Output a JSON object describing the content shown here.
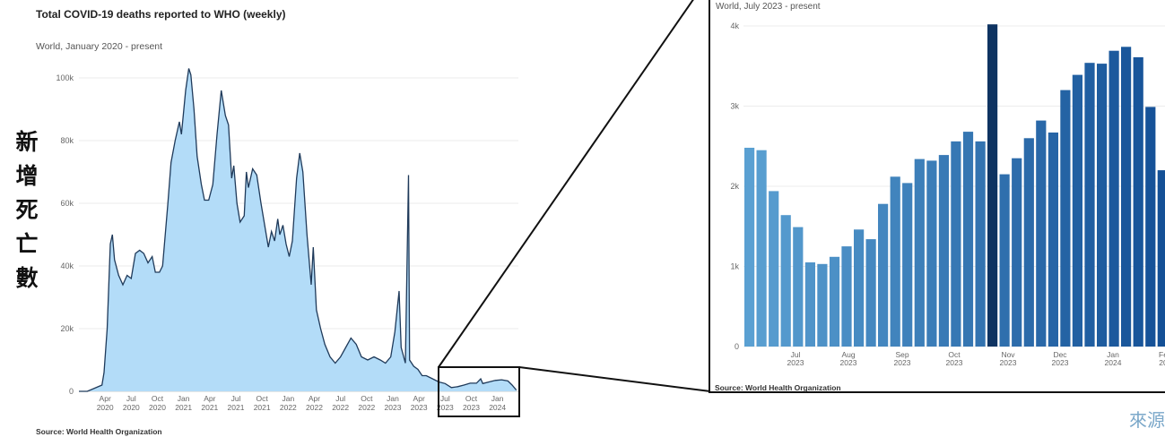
{
  "main_chart": {
    "title": "Total COVID-19 deaths reported to WHO (weekly)",
    "subtitle": "World, January 2020 - present",
    "source": "Source: World Health Organization"
  },
  "inset_chart": {
    "subtitle": "World, July 2023 - present",
    "source": "Source: World Health Organization"
  },
  "side_label": {
    "chars": [
      "新",
      "增",
      "死",
      "亡",
      "數"
    ]
  },
  "corner_text": "來源",
  "colors": {
    "area_fill": "#b3dcf8",
    "area_stroke": "#1f3a5a",
    "highlight_bar": "#0e3361",
    "frame": "#111111"
  },
  "chart_data": [
    {
      "type": "area",
      "ylim": [
        0,
        104000
      ],
      "yticks": [
        "0",
        "20k",
        "40k",
        "60k",
        "80k",
        "100k"
      ],
      "xticks": [
        {
          "m": "Apr",
          "y": "2020"
        },
        {
          "m": "Jul",
          "y": "2020"
        },
        {
          "m": "Oct",
          "y": "2020"
        },
        {
          "m": "Jan",
          "y": "2021"
        },
        {
          "m": "Apr",
          "y": "2021"
        },
        {
          "m": "Jul",
          "y": "2021"
        },
        {
          "m": "Oct",
          "y": "2021"
        },
        {
          "m": "Jan",
          "y": "2022"
        },
        {
          "m": "Apr",
          "y": "2022"
        },
        {
          "m": "Jul",
          "y": "2022"
        },
        {
          "m": "Oct",
          "y": "2022"
        },
        {
          "m": "Jan",
          "y": "2023"
        },
        {
          "m": "Apr",
          "y": "2023"
        },
        {
          "m": "Jul",
          "y": "2023"
        },
        {
          "m": "Oct",
          "y": "2023"
        },
        {
          "m": "Jan",
          "y": "2024"
        }
      ],
      "series": [
        {
          "values": [
            [
              2020.0,
              0
            ],
            [
              2020.08,
              0
            ],
            [
              2020.15,
              1000
            ],
            [
              2020.22,
              2000
            ],
            [
              2020.24,
              6000
            ],
            [
              2020.27,
              20000
            ],
            [
              2020.3,
              47000
            ],
            [
              2020.32,
              50000
            ],
            [
              2020.34,
              42000
            ],
            [
              2020.38,
              37000
            ],
            [
              2020.42,
              34000
            ],
            [
              2020.46,
              37000
            ],
            [
              2020.5,
              36000
            ],
            [
              2020.54,
              44000
            ],
            [
              2020.58,
              45000
            ],
            [
              2020.62,
              44000
            ],
            [
              2020.66,
              41000
            ],
            [
              2020.7,
              43000
            ],
            [
              2020.73,
              38000
            ],
            [
              2020.77,
              38000
            ],
            [
              2020.8,
              40000
            ],
            [
              2020.85,
              60000
            ],
            [
              2020.88,
              73000
            ],
            [
              2020.92,
              80000
            ],
            [
              2020.96,
              86000
            ],
            [
              2020.98,
              82000
            ],
            [
              2021.02,
              96000
            ],
            [
              2021.05,
              103000
            ],
            [
              2021.07,
              101000
            ],
            [
              2021.1,
              90000
            ],
            [
              2021.13,
              75000
            ],
            [
              2021.17,
              66000
            ],
            [
              2021.2,
              61000
            ],
            [
              2021.24,
              61000
            ],
            [
              2021.28,
              66000
            ],
            [
              2021.32,
              82000
            ],
            [
              2021.36,
              96000
            ],
            [
              2021.4,
              88000
            ],
            [
              2021.43,
              85000
            ],
            [
              2021.46,
              68000
            ],
            [
              2021.48,
              72000
            ],
            [
              2021.51,
              60000
            ],
            [
              2021.54,
              54000
            ],
            [
              2021.58,
              56000
            ],
            [
              2021.6,
              70000
            ],
            [
              2021.62,
              65000
            ],
            [
              2021.66,
              71000
            ],
            [
              2021.7,
              69000
            ],
            [
              2021.74,
              60000
            ],
            [
              2021.78,
              52000
            ],
            [
              2021.81,
              46000
            ],
            [
              2021.84,
              51000
            ],
            [
              2021.87,
              48000
            ],
            [
              2021.9,
              55000
            ],
            [
              2021.92,
              50000
            ],
            [
              2021.95,
              53000
            ],
            [
              2021.98,
              47000
            ],
            [
              2022.01,
              43000
            ],
            [
              2022.04,
              48000
            ],
            [
              2022.08,
              68000
            ],
            [
              2022.11,
              76000
            ],
            [
              2022.14,
              70000
            ],
            [
              2022.18,
              50000
            ],
            [
              2022.22,
              34000
            ],
            [
              2022.24,
              46000
            ],
            [
              2022.27,
              26000
            ],
            [
              2022.31,
              20000
            ],
            [
              2022.35,
              15000
            ],
            [
              2022.4,
              11000
            ],
            [
              2022.45,
              9000
            ],
            [
              2022.5,
              11000
            ],
            [
              2022.55,
              14000
            ],
            [
              2022.6,
              17000
            ],
            [
              2022.65,
              15000
            ],
            [
              2022.7,
              11000
            ],
            [
              2022.76,
              10000
            ],
            [
              2022.82,
              11000
            ],
            [
              2022.88,
              10000
            ],
            [
              2022.93,
              9000
            ],
            [
              2022.98,
              11000
            ],
            [
              2023.02,
              19000
            ],
            [
              2023.06,
              32000
            ],
            [
              2023.08,
              14000
            ],
            [
              2023.12,
              9000
            ],
            [
              2023.15,
              69000
            ],
            [
              2023.16,
              10000
            ],
            [
              2023.2,
              8000
            ],
            [
              2023.24,
              7000
            ],
            [
              2023.28,
              5000
            ],
            [
              2023.32,
              5000
            ],
            [
              2023.38,
              4000
            ],
            [
              2023.44,
              3000
            ],
            [
              2023.5,
              2500
            ],
            [
              2023.56,
              1200
            ],
            [
              2023.62,
              1500
            ],
            [
              2023.68,
              2000
            ],
            [
              2023.74,
              2600
            ],
            [
              2023.8,
              2600
            ],
            [
              2023.84,
              4000
            ],
            [
              2023.86,
              2500
            ],
            [
              2023.92,
              3000
            ],
            [
              2023.98,
              3500
            ],
            [
              2024.04,
              3700
            ],
            [
              2024.1,
              3300
            ],
            [
              2024.14,
              2000
            ],
            [
              2024.18,
              400
            ]
          ]
        }
      ],
      "xlim": [
        2020.0,
        2024.2
      ]
    },
    {
      "type": "bar",
      "ylim": [
        0,
        4000
      ],
      "yticks": [
        "0",
        "1k",
        "2k",
        "3k",
        "4k"
      ],
      "xticks": [
        {
          "m": "Jul",
          "y": "2023"
        },
        {
          "m": "Aug",
          "y": "2023"
        },
        {
          "m": "Sep",
          "y": "2023"
        },
        {
          "m": "Oct",
          "y": "2023"
        },
        {
          "m": "Nov",
          "y": "2023"
        },
        {
          "m": "Dec",
          "y": "2023"
        },
        {
          "m": "Jan",
          "y": "2024"
        },
        {
          "m": "Fe",
          "y": "20"
        }
      ],
      "values": [
        2480,
        2450,
        1940,
        1640,
        1490,
        1050,
        1030,
        1120,
        1250,
        1460,
        1340,
        1780,
        2120,
        2040,
        2340,
        2320,
        2390,
        2560,
        2680,
        2560,
        4020,
        2150,
        2350,
        2600,
        2820,
        2670,
        3200,
        3390,
        3540,
        3530,
        3690,
        3740,
        3610,
        2990,
        2200
      ],
      "highlight_index": 20
    }
  ]
}
